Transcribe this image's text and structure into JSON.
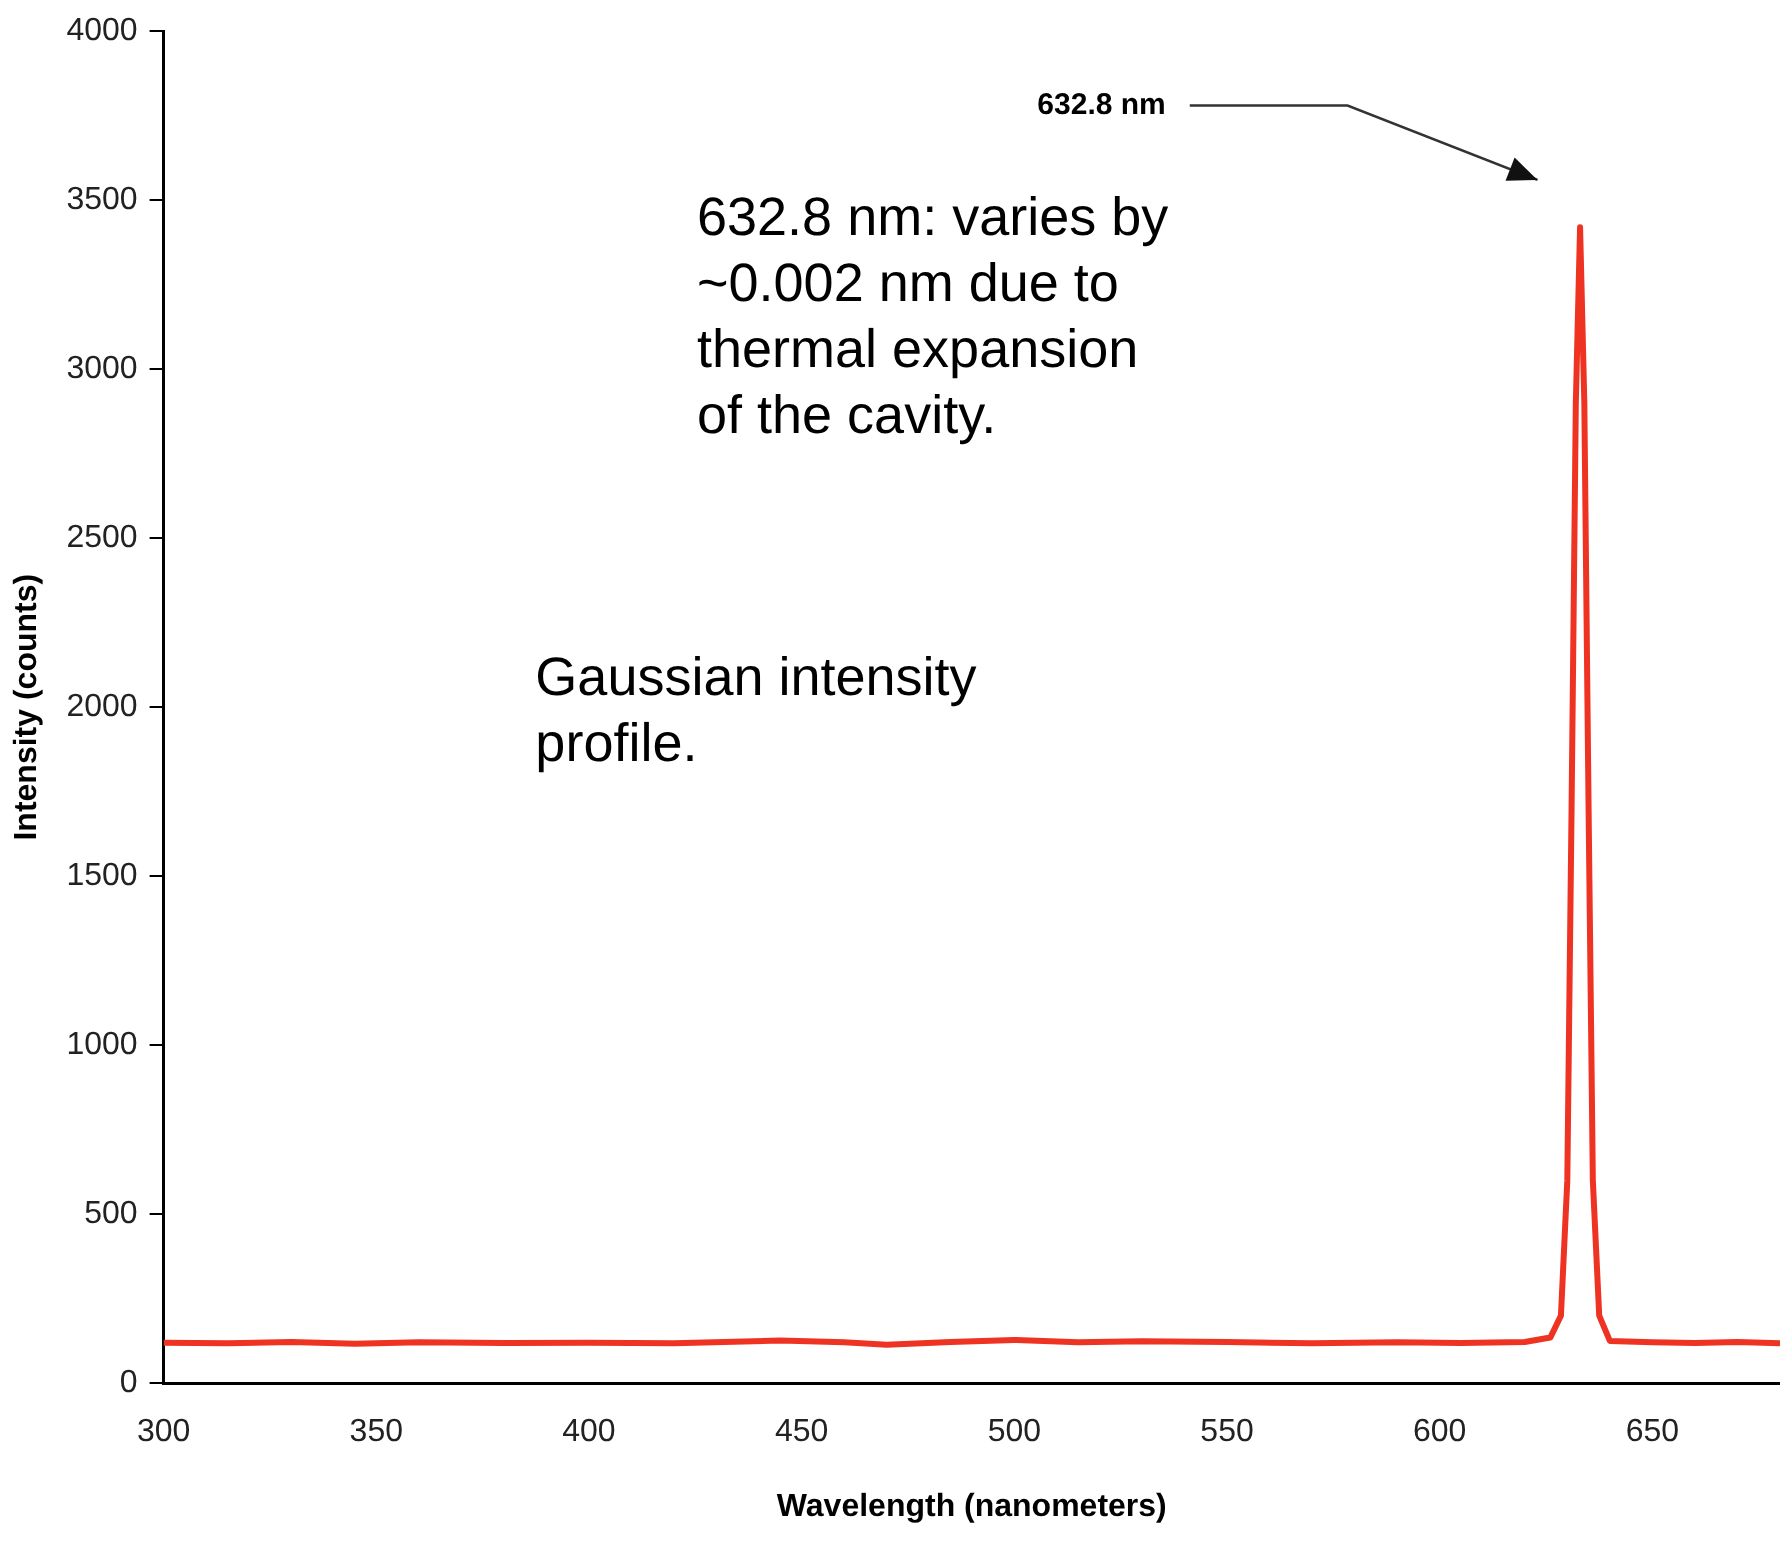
{
  "chart_data": {
    "type": "line",
    "xlabel": "Wavelength (nanometers)",
    "ylabel": "Intensity (counts)",
    "x": [
      300,
      315,
      330,
      345,
      360,
      380,
      400,
      420,
      445,
      460,
      470,
      485,
      500,
      515,
      530,
      550,
      570,
      590,
      605,
      620,
      626,
      628.5,
      630,
      631,
      632,
      633,
      634,
      635,
      636,
      637.5,
      640,
      650,
      660,
      670,
      680
    ],
    "series": [
      {
        "color": "#ee3322",
        "values": [
          120,
          118,
          122,
          117,
          121,
          119,
          120,
          118,
          126,
          121,
          114,
          122,
          128,
          121,
          124,
          122,
          118,
          121,
          119,
          122,
          135,
          200,
          600,
          1700,
          2900,
          3420,
          2900,
          1700,
          600,
          200,
          125,
          121,
          119,
          122,
          118
        ]
      }
    ],
    "xlim": [
      300,
      680
    ],
    "xticks": [
      300,
      350,
      400,
      450,
      500,
      550,
      600,
      650
    ],
    "ylim": [
      0,
      4000
    ],
    "yticks": [
      0,
      500,
      1000,
      1500,
      2000,
      2500,
      3000,
      3500,
      4000
    ],
    "grid": false,
    "legend": false,
    "marker": "none",
    "line_style": "solid",
    "annotations": [
      "632.8 nm",
      "632.8 nm: varies by\n~0.002 nm due to\nthermal expansion\nof the cavity.",
      "Gaussian intensity\nprofile."
    ]
  }
}
